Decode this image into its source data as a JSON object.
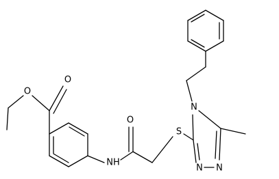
{
  "atoms": [
    {
      "label": "O"
    },
    {
      "label": "O"
    },
    {
      "label": "O"
    },
    {
      "label": "NH"
    },
    {
      "label": "S"
    },
    {
      "label": "N"
    },
    {
      "label": "N"
    },
    {
      "label": "N"
    }
  ]
}
